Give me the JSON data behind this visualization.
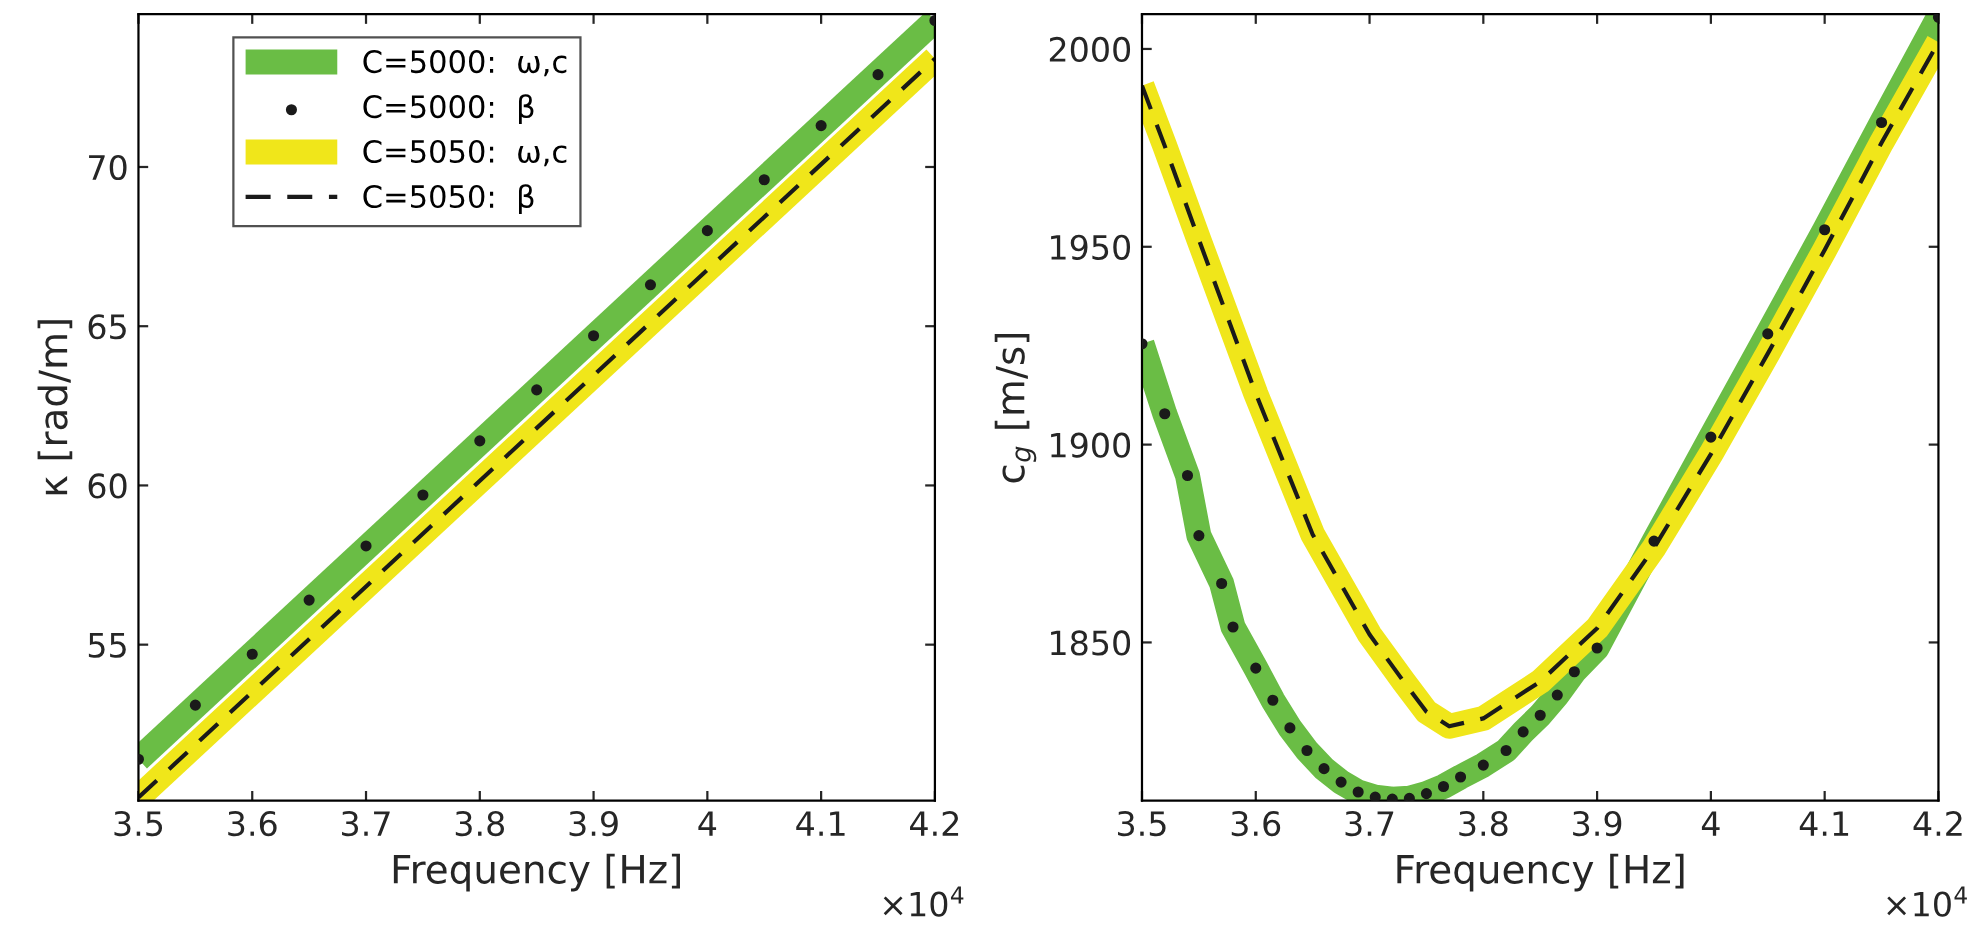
{
  "chart_data": [
    {
      "type": "line",
      "xlabel": "Frequency [Hz]",
      "ylabel": "κ [rad/m]",
      "legend": "top left",
      "grid": false,
      "annotations": [
        "×10$^{4}$"
      ],
      "xlim": [
        3.5,
        4.2
      ],
      "ylim": [
        50.1,
        74.8
      ],
      "xticks": [
        3.5,
        3.6,
        3.7,
        3.8,
        3.9,
        4,
        4.1,
        4.2
      ],
      "yticks": [
        55,
        60,
        65,
        70
      ],
      "series": [
        {
          "name": "C=5000:  ω,c",
          "color": "#6abd45",
          "line_style": "solid",
          "marker": "none",
          "x": [
            3.5,
            4.2
          ],
          "values": [
            51.4,
            74.6
          ]
        },
        {
          "name": "C=5000:  β",
          "type": "scatter",
          "color": "#1a1a1a",
          "marker": "circle",
          "x": [
            3.5,
            3.55,
            3.6,
            3.65,
            3.7,
            3.75,
            3.8,
            3.85,
            3.9,
            3.95,
            4.0,
            4.05,
            4.1,
            4.15,
            4.2
          ],
          "values": [
            51.4,
            53.1,
            54.7,
            56.4,
            58.1,
            59.7,
            61.4,
            63.0,
            64.7,
            66.3,
            68.0,
            69.6,
            71.3,
            72.9,
            74.6
          ]
        },
        {
          "name": "C=5050:  ω,c",
          "color": "#f0e61a",
          "line_style": "solid",
          "marker": "none",
          "x": [
            3.5,
            4.2
          ],
          "values": [
            50.2,
            73.4
          ]
        },
        {
          "name": "C=5050:  β",
          "color": "#1a1a1a",
          "line_style": "dashed",
          "marker": "none",
          "x": [
            3.5,
            4.2
          ],
          "values": [
            50.2,
            73.4
          ]
        }
      ]
    },
    {
      "type": "line",
      "xlabel": "Frequency [Hz]",
      "ylabel": "c$_{g}$ [m/s]",
      "legend": false,
      "grid": false,
      "annotations": [
        "×10$^{4}$"
      ],
      "xlim": [
        3.5,
        4.2
      ],
      "ylim": [
        1810,
        2008.8
      ],
      "xticks": [
        3.5,
        3.6,
        3.7,
        3.8,
        3.9,
        4,
        4.1,
        4.2
      ],
      "yticks": [
        1850,
        1900,
        1950,
        2000
      ],
      "series": [
        {
          "color": "#6abd45",
          "line_style": "solid",
          "marker": "none",
          "x": [
            3.5,
            3.52,
            3.54,
            3.55,
            3.57,
            3.58,
            3.6,
            3.615,
            3.63,
            3.645,
            3.66,
            3.675,
            3.69,
            3.705,
            3.72,
            3.735,
            3.75,
            3.765,
            3.78,
            3.8,
            3.82,
            3.835,
            3.85,
            3.865,
            3.88,
            3.9,
            3.95,
            4.0,
            4.05,
            4.1,
            4.15,
            4.2
          ],
          "values": [
            1925.5,
            1907.8,
            1892.2,
            1877,
            1864.9,
            1853.9,
            1843.5,
            1835.4,
            1828.4,
            1822.7,
            1818.1,
            1814.7,
            1812.2,
            1810.9,
            1810.4,
            1810.6,
            1811.8,
            1813.6,
            1816,
            1819,
            1822.7,
            1827.4,
            1831.6,
            1836.7,
            1842.6,
            1848.6,
            1875.6,
            1901.9,
            1928,
            1954.3,
            1981.4,
            2008
          ]
        },
        {
          "type": "scatter",
          "color": "#1a1a1a",
          "marker": "circle",
          "x": [
            3.5,
            3.52,
            3.54,
            3.55,
            3.57,
            3.58,
            3.6,
            3.615,
            3.63,
            3.645,
            3.66,
            3.675,
            3.69,
            3.705,
            3.72,
            3.735,
            3.75,
            3.765,
            3.78,
            3.8,
            3.82,
            3.835,
            3.85,
            3.865,
            3.88,
            3.9,
            3.95,
            4.0,
            4.05,
            4.1,
            4.15,
            4.2
          ],
          "values": [
            1925.5,
            1907.8,
            1892.2,
            1877,
            1864.9,
            1853.9,
            1843.5,
            1835.4,
            1828.4,
            1822.7,
            1818.1,
            1814.7,
            1812.2,
            1810.9,
            1810.4,
            1810.6,
            1811.8,
            1813.6,
            1816,
            1819,
            1822.7,
            1827.4,
            1831.6,
            1836.7,
            1842.6,
            1848.6,
            1875.6,
            1901.9,
            1928,
            1954.3,
            1981.4,
            2008
          ]
        },
        {
          "color": "#f0e61a",
          "line_style": "solid",
          "marker": "none",
          "x": [
            3.5,
            3.52,
            3.55,
            3.6,
            3.65,
            3.7,
            3.73,
            3.75,
            3.77,
            3.8,
            3.85,
            3.9,
            3.95,
            4.0,
            4.05,
            4.1,
            4.15,
            4.2
          ],
          "values": [
            1990.7,
            1975.5,
            1951.8,
            1912.9,
            1877.3,
            1852,
            1840.1,
            1832.5,
            1828.8,
            1830.8,
            1840.1,
            1853.6,
            1873.9,
            1897.6,
            1923,
            1949.2,
            1976.3,
            2001.7
          ]
        },
        {
          "color": "#1a1a1a",
          "line_style": "dashed",
          "marker": "none",
          "x": [
            3.5,
            3.52,
            3.55,
            3.6,
            3.65,
            3.7,
            3.73,
            3.75,
            3.77,
            3.8,
            3.85,
            3.9,
            3.95,
            4.0,
            4.05,
            4.1,
            4.15,
            4.2
          ],
          "values": [
            1990.7,
            1975.5,
            1951.8,
            1912.9,
            1877.3,
            1852,
            1840.1,
            1832.5,
            1828.8,
            1830.8,
            1840.1,
            1853.6,
            1873.9,
            1897.6,
            1923,
            1949.2,
            1976.3,
            2001.7
          ]
        }
      ]
    }
  ]
}
